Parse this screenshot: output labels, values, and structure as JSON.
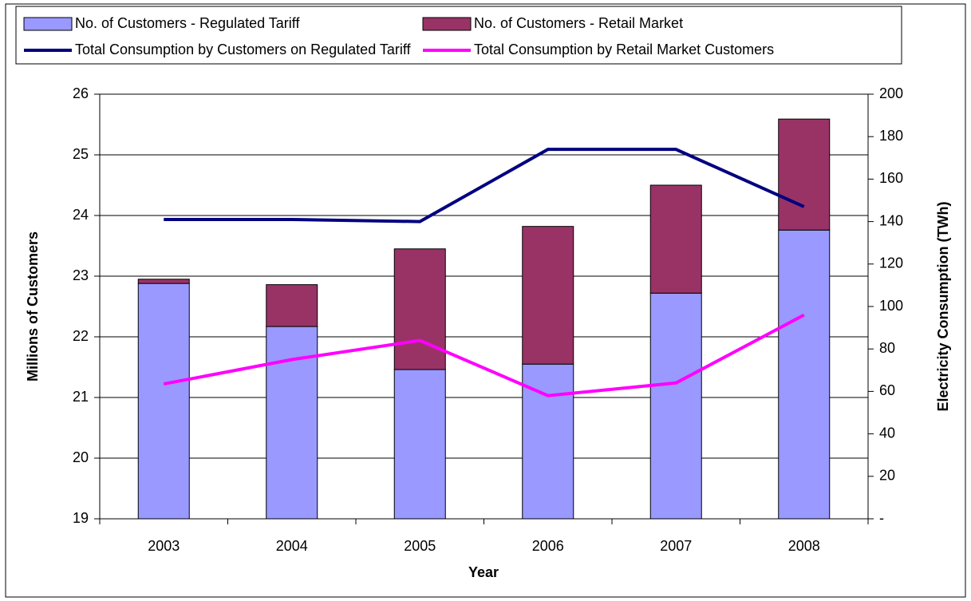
{
  "chart_data": {
    "type": "bar",
    "stacked": true,
    "categories": [
      "2003",
      "2004",
      "2005",
      "2006",
      "2007",
      "2008"
    ],
    "series": [
      {
        "name": "No. of Customers - Regulated Tariff",
        "type": "bar",
        "color": "#9999ff",
        "values": [
          22.88,
          22.17,
          21.46,
          21.55,
          22.72,
          23.76
        ]
      },
      {
        "name": "No. of Customers - Retail Market",
        "type": "bar",
        "color": "#993366",
        "values": [
          0.07,
          0.69,
          1.99,
          2.27,
          1.78,
          1.83
        ]
      },
      {
        "name": "Total Consumption by Customers on Regulated Tariff",
        "type": "line",
        "axis": "y2",
        "color": "#000080",
        "values": [
          141,
          141,
          140,
          174,
          174,
          147
        ]
      },
      {
        "name": "Total Consumption by Retail Market Customers",
        "type": "line",
        "axis": "y2",
        "color": "#ff00ff",
        "values": [
          63.5,
          75,
          84,
          58,
          64,
          96
        ]
      }
    ],
    "x_label": "Year",
    "y_label": "Millions of Customers",
    "y2_label": "Electricity Consumption (TWh)",
    "ylim": [
      19,
      26
    ],
    "yticks": [
      19,
      20,
      21,
      22,
      23,
      24,
      25,
      26
    ],
    "y2lim": [
      0,
      200
    ],
    "y2ticks": [
      {
        "value": 0,
        "label": "-"
      },
      20,
      40,
      60,
      80,
      100,
      120,
      140,
      160,
      180,
      200
    ],
    "grid": true,
    "legend": "top"
  }
}
